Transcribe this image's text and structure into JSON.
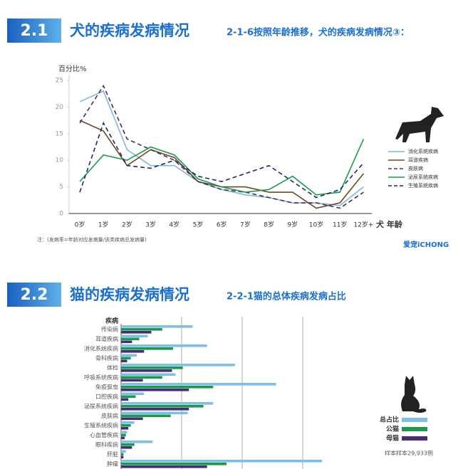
{
  "sections": [
    {
      "number": "2.1",
      "title": "犬的疾病发病情况",
      "subtitle": "2-1-6按照年龄推移，犬的疾病发病情况③："
    },
    {
      "number": "2.2",
      "title": "猫的疾病发病情况",
      "subtitle": "2-2-1猫的总体疾病发病占比"
    }
  ],
  "brand": "爱宠iCHONG",
  "chart_data": [
    {
      "type": "line",
      "y_label": "百分比%",
      "x_label": "犬 年龄",
      "note": "注：(发病率=年龄对应发病量/该类疾病总发病量)",
      "categories": [
        "0岁",
        "1岁",
        "2岁",
        "3岁",
        "4岁",
        "5岁",
        "6岁",
        "7岁",
        "8岁",
        "9岁",
        "10岁",
        "11岁",
        "12岁+"
      ],
      "ylim": [
        0,
        25
      ],
      "yticks": [
        0,
        5,
        10,
        15,
        20,
        25
      ],
      "legend": "right",
      "series": [
        {
          "name": "消化系统疾病",
          "color": "#7fb8e0",
          "dashed": false,
          "values": [
            21,
            23,
            12,
            9,
            9,
            6,
            4.5,
            3.5,
            3,
            2,
            2,
            1.5,
            5
          ]
        },
        {
          "name": "耳道疾病",
          "color": "#6b4a1e",
          "dashed": false,
          "values": [
            17.5,
            15.5,
            9,
            12,
            10.5,
            6,
            5,
            5,
            4,
            4,
            1,
            2,
            7.5
          ]
        },
        {
          "name": "皮肤病",
          "color": "#4a2a6a",
          "dashed": true,
          "values": [
            17,
            24,
            14,
            12,
            10,
            6,
            4.5,
            4,
            3,
            2,
            2,
            1,
            4
          ]
        },
        {
          "name": "泌尿系统疾病",
          "color": "#1a9a4a",
          "dashed": false,
          "values": [
            6,
            11,
            10,
            12.5,
            11,
            6.5,
            5,
            4,
            4.5,
            7,
            3.5,
            4,
            14
          ]
        },
        {
          "name": "生殖系统疾病",
          "color": "#1a2a6a",
          "dashed": true,
          "values": [
            4,
            17,
            9,
            8.5,
            10,
            7,
            6,
            7.5,
            9,
            6,
            3,
            4.5,
            9.5
          ]
        }
      ]
    },
    {
      "type": "hbar",
      "y_label": "疾病",
      "sample_note": "样本样本29,933例",
      "xlim": [
        0,
        20
      ],
      "legend": "right",
      "categories": [
        "传染病",
        "耳道疾病",
        "消化系统疾病",
        "骨科疾病",
        "体检",
        "呼吸系统疾病",
        "免疫驱虫",
        "口腔疾病",
        "泌尿系统疾病",
        "皮肤病",
        "生殖系统疾病",
        "心血管疾病",
        "眼科疾病",
        "肝脏",
        "肿瘤"
      ],
      "series": [
        {
          "name": "总占比",
          "color": "#7fbfe6",
          "values": [
            5.9,
            2.2,
            7.1,
            1.3,
            9.4,
            4.5,
            12.8,
            1.9,
            7.6,
            5.5,
            1.1,
            0.5,
            2.6,
            0.4,
            16.6
          ]
        },
        {
          "name": "公猫",
          "color": "#1a9a4a",
          "values": [
            3.4,
            1.5,
            4.3,
            0.8,
            5.1,
            3.4,
            7.6,
            1.2,
            6.8,
            4.1,
            0.8,
            0.4,
            1.1,
            0.2,
            8.7
          ]
        },
        {
          "name": "母猫",
          "color": "#4a2a7a",
          "values": [
            2.5,
            0.9,
            1.9,
            0.5,
            4.2,
            1.8,
            5.6,
            0.6,
            5.6,
            1.8,
            0.6,
            0.3,
            0.9,
            0.2,
            7.1
          ]
        }
      ]
    }
  ]
}
